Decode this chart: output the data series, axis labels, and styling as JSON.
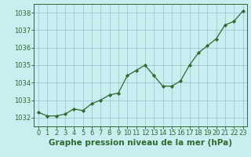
{
  "x": [
    0,
    1,
    2,
    3,
    4,
    5,
    6,
    7,
    8,
    9,
    10,
    11,
    12,
    13,
    14,
    15,
    16,
    17,
    18,
    19,
    20,
    21,
    22,
    23
  ],
  "y": [
    1032.3,
    1032.1,
    1032.1,
    1032.2,
    1032.5,
    1032.4,
    1032.8,
    1033.0,
    1033.3,
    1033.4,
    1034.4,
    1034.7,
    1035.0,
    1034.4,
    1033.8,
    1033.8,
    1034.1,
    1035.0,
    1035.7,
    1036.1,
    1036.5,
    1037.3,
    1037.5,
    1038.1
  ],
  "line_color": "#2d6a2d",
  "marker": "D",
  "marker_size": 2.2,
  "bg_color": "#c8eef0",
  "grid_color": "#a0c8d0",
  "title": "Graphe pression niveau de la mer (hPa)",
  "ylim": [
    1031.5,
    1038.5
  ],
  "xlim": [
    -0.5,
    23.5
  ],
  "yticks": [
    1032,
    1033,
    1034,
    1035,
    1036,
    1037,
    1038
  ],
  "xticks": [
    0,
    1,
    2,
    3,
    4,
    5,
    6,
    7,
    8,
    9,
    10,
    11,
    12,
    13,
    14,
    15,
    16,
    17,
    18,
    19,
    20,
    21,
    22,
    23
  ],
  "title_fontsize": 7.5,
  "tick_fontsize": 6.0,
  "tick_color": "#2d6a2d",
  "axis_color": "#2d6a2d",
  "title_color": "#2d6a2d"
}
